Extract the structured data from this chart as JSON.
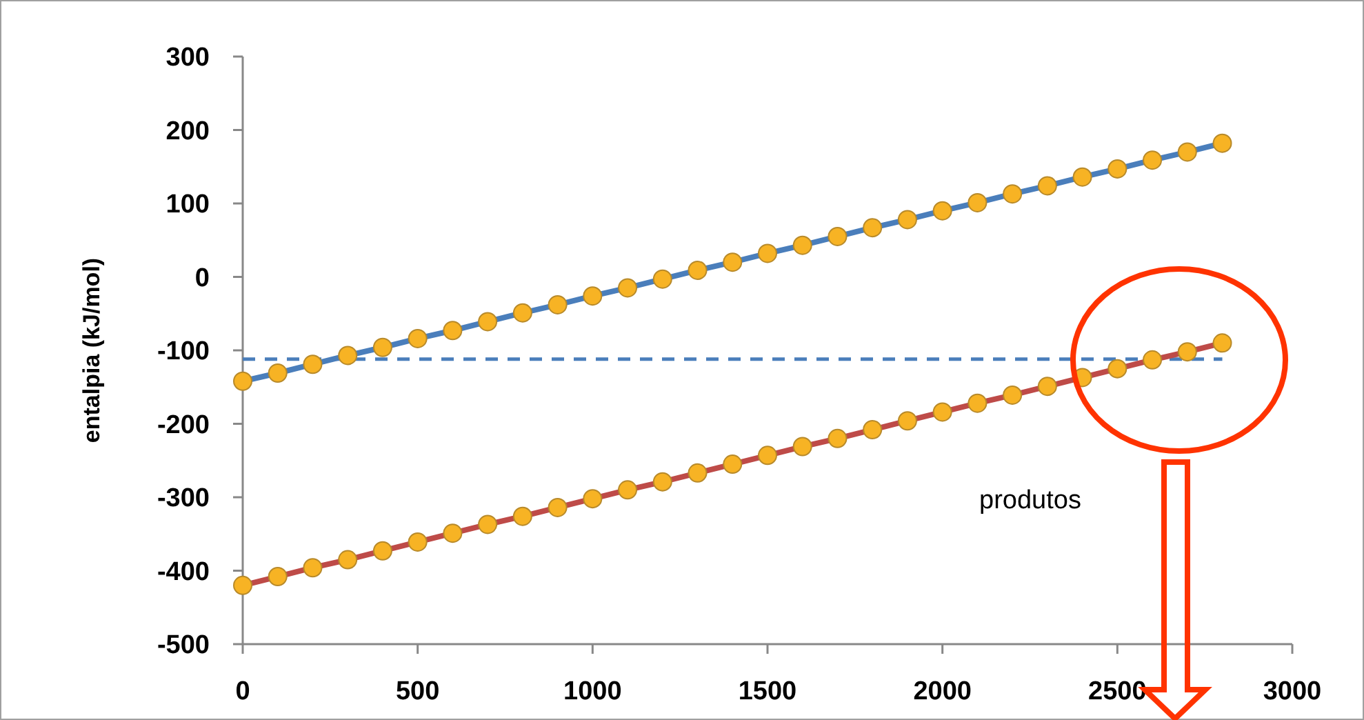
{
  "chart_data": {
    "type": "line",
    "ylabel": "entalpia (kJ/mol)",
    "x": [
      0,
      100,
      200,
      300,
      400,
      500,
      600,
      700,
      800,
      900,
      1000,
      1100,
      1200,
      1300,
      1400,
      1500,
      1600,
      1700,
      1800,
      1900,
      2000,
      2100,
      2200,
      2300,
      2400,
      2500,
      2600,
      2700,
      2800
    ],
    "series": [
      {
        "color": "#4a7ebb",
        "values": [
          -142,
          -131,
          -119,
          -107,
          -96,
          -84,
          -73,
          -61,
          -49,
          -38,
          -26,
          -15,
          -3,
          9,
          20,
          32,
          43,
          55,
          67,
          78,
          90,
          101,
          113,
          124,
          136,
          147,
          159,
          170,
          182
        ]
      },
      {
        "color": "#be4b48",
        "values": [
          -420,
          -408,
          -396,
          -385,
          -373,
          -361,
          -349,
          -337,
          -326,
          -314,
          -302,
          -290,
          -279,
          -267,
          -255,
          -243,
          -231,
          -220,
          -208,
          -196,
          -184,
          -172,
          -161,
          -149,
          -137,
          -125,
          -113,
          -102,
          -90
        ]
      }
    ],
    "xlim": [
      0,
      3000
    ],
    "xticks": [
      0,
      500,
      1000,
      1500,
      2000,
      2500,
      3000
    ],
    "ylim": [
      -500,
      300
    ],
    "yticks": [
      -500,
      -400,
      -300,
      -200,
      -100,
      0,
      100,
      200,
      300
    ],
    "ref_lines": [
      {
        "axis": "y",
        "value": -112,
        "color": "#4a7ebb",
        "line_style": "dashed"
      }
    ],
    "annotations": [
      "produtos"
    ],
    "marker": "circle",
    "line_style": "solid",
    "grid": false
  }
}
